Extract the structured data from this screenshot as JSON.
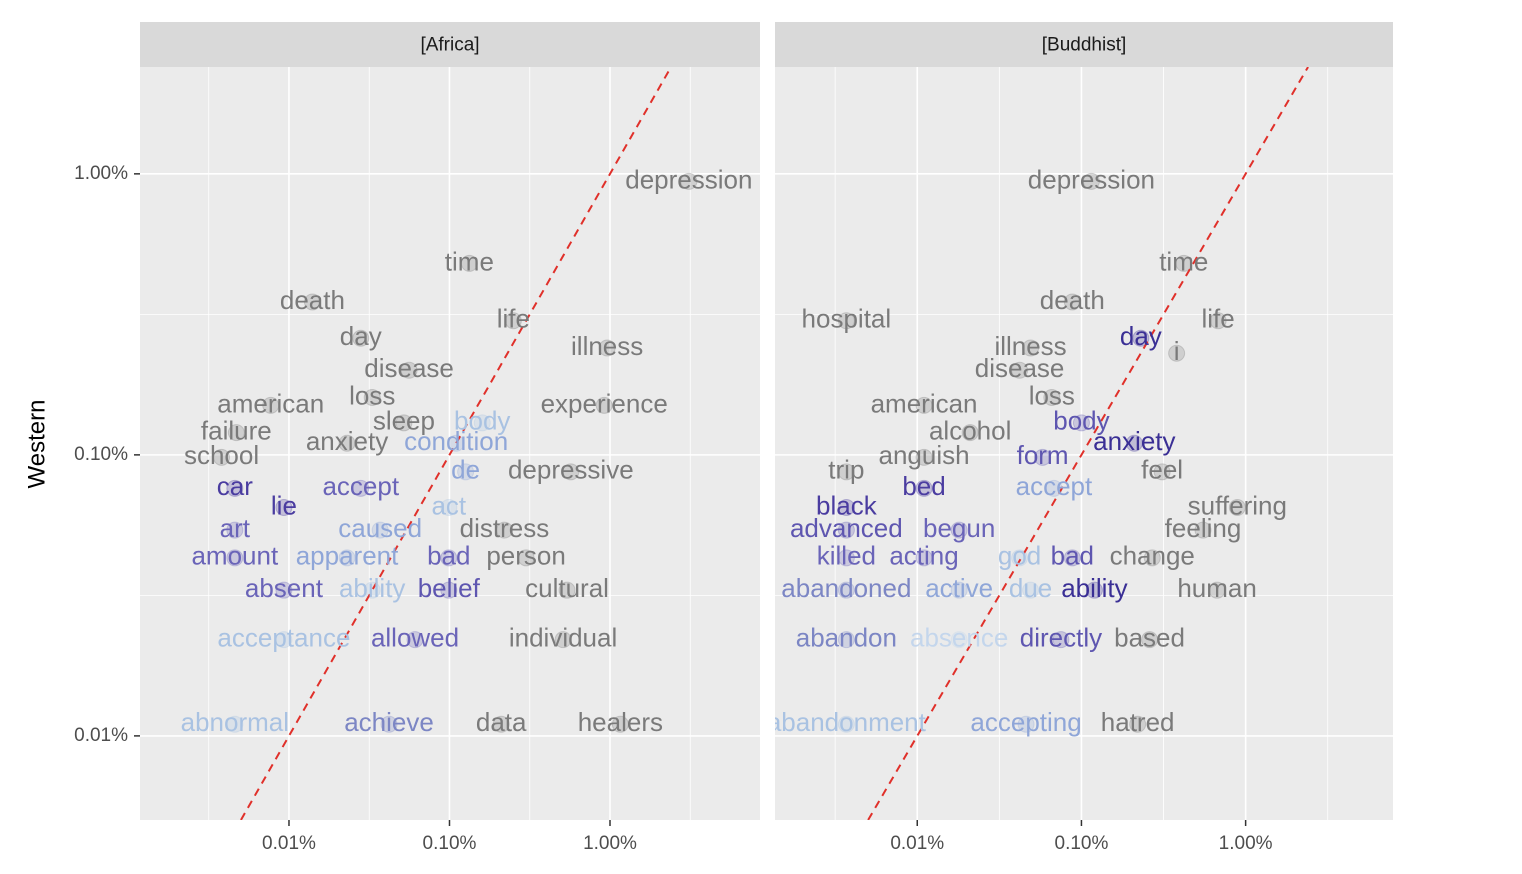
{
  "chart_data": [
    {
      "type": "scatter",
      "facet": "[Africa]",
      "y_label": "Western",
      "log_x": true,
      "log_y": true,
      "grid": true,
      "show_yticklabels": true,
      "reference_line": {
        "type": "identity",
        "color": "#e0302a",
        "dashed": true
      },
      "xlim": [
        0.00118,
        8.6
      ],
      "ylim": [
        0.00502,
        2.4
      ],
      "xticks": [
        {
          "value": 0.01,
          "label": "0.01%"
        },
        {
          "value": 0.1,
          "label": "0.10%"
        },
        {
          "value": 1,
          "label": "1.00%"
        }
      ],
      "yticks": [
        {
          "value": 0.01,
          "label": "0.01%"
        },
        {
          "value": 0.1,
          "label": "0.10%"
        },
        {
          "value": 1,
          "label": "1.00%"
        }
      ],
      "points": [
        {
          "label": "depression",
          "x": 3.1,
          "y": 0.94,
          "color": "#7a7a7a"
        },
        {
          "label": "time",
          "x": 0.133,
          "y": 0.48,
          "color": "#7a7a7a"
        },
        {
          "label": "death",
          "x": 0.014,
          "y": 0.35,
          "color": "#7a7a7a"
        },
        {
          "label": "life",
          "x": 0.25,
          "y": 0.3,
          "color": "#7a7a7a"
        },
        {
          "label": "day",
          "x": 0.028,
          "y": 0.26,
          "color": "#7a7a7a"
        },
        {
          "label": "illness",
          "x": 0.96,
          "y": 0.24,
          "color": "#7a7a7a"
        },
        {
          "label": "disease",
          "x": 0.056,
          "y": 0.2,
          "color": "#7a7a7a"
        },
        {
          "label": "american",
          "x": 0.0077,
          "y": 0.15,
          "color": "#7a7a7a"
        },
        {
          "label": "loss",
          "x": 0.033,
          "y": 0.16,
          "color": "#7a7a7a"
        },
        {
          "label": "experience",
          "x": 0.92,
          "y": 0.15,
          "color": "#7a7a7a"
        },
        {
          "label": "sleep",
          "x": 0.052,
          "y": 0.13,
          "color": "#7a7a7a"
        },
        {
          "label": "body",
          "x": 0.16,
          "y": 0.13,
          "color": "#a9c2e2"
        },
        {
          "label": "failure",
          "x": 0.0047,
          "y": 0.12,
          "color": "#7a7a7a"
        },
        {
          "label": "anxiety",
          "x": 0.023,
          "y": 0.11,
          "color": "#7a7a7a"
        },
        {
          "label": "condition",
          "x": 0.11,
          "y": 0.11,
          "color": "#8fa6d8"
        },
        {
          "label": "school",
          "x": 0.0038,
          "y": 0.098,
          "color": "#7a7a7a"
        },
        {
          "label": "de",
          "x": 0.126,
          "y": 0.087,
          "color": "#8fa6d8"
        },
        {
          "label": "depressive",
          "x": 0.57,
          "y": 0.087,
          "color": "#7a7a7a"
        },
        {
          "label": "car",
          "x": 0.0046,
          "y": 0.076,
          "color": "#4a3ca0"
        },
        {
          "label": "accept",
          "x": 0.028,
          "y": 0.076,
          "color": "#6a64b8"
        },
        {
          "label": "lie",
          "x": 0.0093,
          "y": 0.065,
          "color": "#4a3ca0"
        },
        {
          "label": "act",
          "x": 0.099,
          "y": 0.065,
          "color": "#a9c2e2"
        },
        {
          "label": "art",
          "x": 0.0046,
          "y": 0.054,
          "color": "#6a64b8"
        },
        {
          "label": "caused",
          "x": 0.037,
          "y": 0.054,
          "color": "#8fa6d8"
        },
        {
          "label": "distress",
          "x": 0.22,
          "y": 0.054,
          "color": "#7a7a7a"
        },
        {
          "label": "amount",
          "x": 0.0046,
          "y": 0.043,
          "color": "#6a64b8"
        },
        {
          "label": "apparent",
          "x": 0.023,
          "y": 0.043,
          "color": "#8fa6d8"
        },
        {
          "label": "bad",
          "x": 0.099,
          "y": 0.043,
          "color": "#6a64b8"
        },
        {
          "label": "person",
          "x": 0.3,
          "y": 0.043,
          "color": "#7a7a7a"
        },
        {
          "label": "absent",
          "x": 0.0093,
          "y": 0.033,
          "color": "#6a64b8"
        },
        {
          "label": "ability",
          "x": 0.033,
          "y": 0.033,
          "color": "#a9c2e2"
        },
        {
          "label": "belief",
          "x": 0.099,
          "y": 0.033,
          "color": "#5e56b0"
        },
        {
          "label": "cultural",
          "x": 0.54,
          "y": 0.033,
          "color": "#7a7a7a"
        },
        {
          "label": "acceptance",
          "x": 0.0093,
          "y": 0.022,
          "color": "#a9c2e2"
        },
        {
          "label": "allowed",
          "x": 0.061,
          "y": 0.022,
          "color": "#6a64b8"
        },
        {
          "label": "individual",
          "x": 0.51,
          "y": 0.022,
          "color": "#7a7a7a"
        },
        {
          "label": "abnormal",
          "x": 0.0046,
          "y": 0.011,
          "color": "#a9c2e2"
        },
        {
          "label": "achieve",
          "x": 0.042,
          "y": 0.011,
          "color": "#7c86c4"
        },
        {
          "label": "data",
          "x": 0.21,
          "y": 0.011,
          "color": "#7a7a7a"
        },
        {
          "label": "healers",
          "x": 1.16,
          "y": 0.011,
          "color": "#7a7a7a"
        }
      ]
    },
    {
      "type": "scatter",
      "facet": "[Buddhist]",
      "log_x": true,
      "log_y": true,
      "grid": true,
      "show_yticklabels": false,
      "reference_line": {
        "type": "identity",
        "color": "#e0302a",
        "dashed": true
      },
      "xlim": [
        0.00136,
        7.9
      ],
      "ylim": [
        0.00502,
        2.4
      ],
      "xticks": [
        {
          "value": 0.01,
          "label": "0.01%"
        },
        {
          "value": 0.1,
          "label": "0.10%"
        },
        {
          "value": 1,
          "label": "1.00%"
        }
      ],
      "yticks": [
        {
          "value": 0.01,
          "label": "0.01%"
        },
        {
          "value": 0.1,
          "label": "0.10%"
        },
        {
          "value": 1,
          "label": "1.00%"
        }
      ],
      "points": [
        {
          "label": "depression",
          "x": 0.115,
          "y": 0.94,
          "color": "#7a7a7a"
        },
        {
          "label": "time",
          "x": 0.42,
          "y": 0.48,
          "color": "#7a7a7a"
        },
        {
          "label": "death",
          "x": 0.088,
          "y": 0.35,
          "color": "#7a7a7a"
        },
        {
          "label": "hospital",
          "x": 0.0037,
          "y": 0.3,
          "color": "#7a7a7a"
        },
        {
          "label": "life",
          "x": 0.68,
          "y": 0.3,
          "color": "#7a7a7a"
        },
        {
          "label": "day",
          "x": 0.23,
          "y": 0.26,
          "color": "#3a2f95"
        },
        {
          "label": "illness",
          "x": 0.049,
          "y": 0.24,
          "color": "#7a7a7a"
        },
        {
          "label": "i",
          "x": 0.38,
          "y": 0.23,
          "color": "#7a7a7a"
        },
        {
          "label": "disease",
          "x": 0.042,
          "y": 0.2,
          "color": "#7a7a7a"
        },
        {
          "label": "american",
          "x": 0.011,
          "y": 0.15,
          "color": "#7a7a7a"
        },
        {
          "label": "loss",
          "x": 0.066,
          "y": 0.16,
          "color": "#7a7a7a"
        },
        {
          "label": "body",
          "x": 0.1,
          "y": 0.13,
          "color": "#5e56b0"
        },
        {
          "label": "alcohol",
          "x": 0.021,
          "y": 0.12,
          "color": "#7a7a7a"
        },
        {
          "label": "anxiety",
          "x": 0.21,
          "y": 0.11,
          "color": "#3a2f95"
        },
        {
          "label": "anguish",
          "x": 0.011,
          "y": 0.098,
          "color": "#7a7a7a"
        },
        {
          "label": "form",
          "x": 0.058,
          "y": 0.098,
          "color": "#5e56b0"
        },
        {
          "label": "trip",
          "x": 0.0037,
          "y": 0.087,
          "color": "#7a7a7a"
        },
        {
          "label": "feel",
          "x": 0.31,
          "y": 0.087,
          "color": "#7a7a7a"
        },
        {
          "label": "bed",
          "x": 0.011,
          "y": 0.076,
          "color": "#4a3ca0"
        },
        {
          "label": "accept",
          "x": 0.068,
          "y": 0.076,
          "color": "#8fa6d8"
        },
        {
          "label": "black",
          "x": 0.0037,
          "y": 0.065,
          "color": "#4a3ca0"
        },
        {
          "label": "suffering",
          "x": 0.89,
          "y": 0.065,
          "color": "#7a7a7a"
        },
        {
          "label": "advanced",
          "x": 0.0037,
          "y": 0.054,
          "color": "#5e56b0"
        },
        {
          "label": "begun",
          "x": 0.018,
          "y": 0.054,
          "color": "#6a64b8"
        },
        {
          "label": "feeling",
          "x": 0.55,
          "y": 0.054,
          "color": "#7a7a7a"
        },
        {
          "label": "killed",
          "x": 0.0037,
          "y": 0.043,
          "color": "#6a64b8"
        },
        {
          "label": "acting",
          "x": 0.011,
          "y": 0.043,
          "color": "#6a64b8"
        },
        {
          "label": "god",
          "x": 0.042,
          "y": 0.043,
          "color": "#a9c2e2"
        },
        {
          "label": "bad",
          "x": 0.088,
          "y": 0.043,
          "color": "#5e56b0"
        },
        {
          "label": "change",
          "x": 0.27,
          "y": 0.043,
          "color": "#7a7a7a"
        },
        {
          "label": "abandoned",
          "x": 0.0037,
          "y": 0.033,
          "color": "#7c86c4"
        },
        {
          "label": "active",
          "x": 0.018,
          "y": 0.033,
          "color": "#8fa6d8"
        },
        {
          "label": "due",
          "x": 0.049,
          "y": 0.033,
          "color": "#a9c2e2"
        },
        {
          "label": "ability",
          "x": 0.12,
          "y": 0.033,
          "color": "#3a2f95"
        },
        {
          "label": "human",
          "x": 0.67,
          "y": 0.033,
          "color": "#7a7a7a"
        },
        {
          "label": "abandon",
          "x": 0.0037,
          "y": 0.022,
          "color": "#7c86c4"
        },
        {
          "label": "absence",
          "x": 0.018,
          "y": 0.022,
          "color": "#c4d6ec"
        },
        {
          "label": "directly",
          "x": 0.075,
          "y": 0.022,
          "color": "#5e56b0"
        },
        {
          "label": "based",
          "x": 0.26,
          "y": 0.022,
          "color": "#7a7a7a"
        },
        {
          "label": "abandonment",
          "x": 0.0037,
          "y": 0.011,
          "color": "#a9c2e2"
        },
        {
          "label": "accepting",
          "x": 0.046,
          "y": 0.011,
          "color": "#8fa6d8"
        },
        {
          "label": "hatred",
          "x": 0.22,
          "y": 0.011,
          "color": "#7a7a7a"
        }
      ]
    }
  ]
}
